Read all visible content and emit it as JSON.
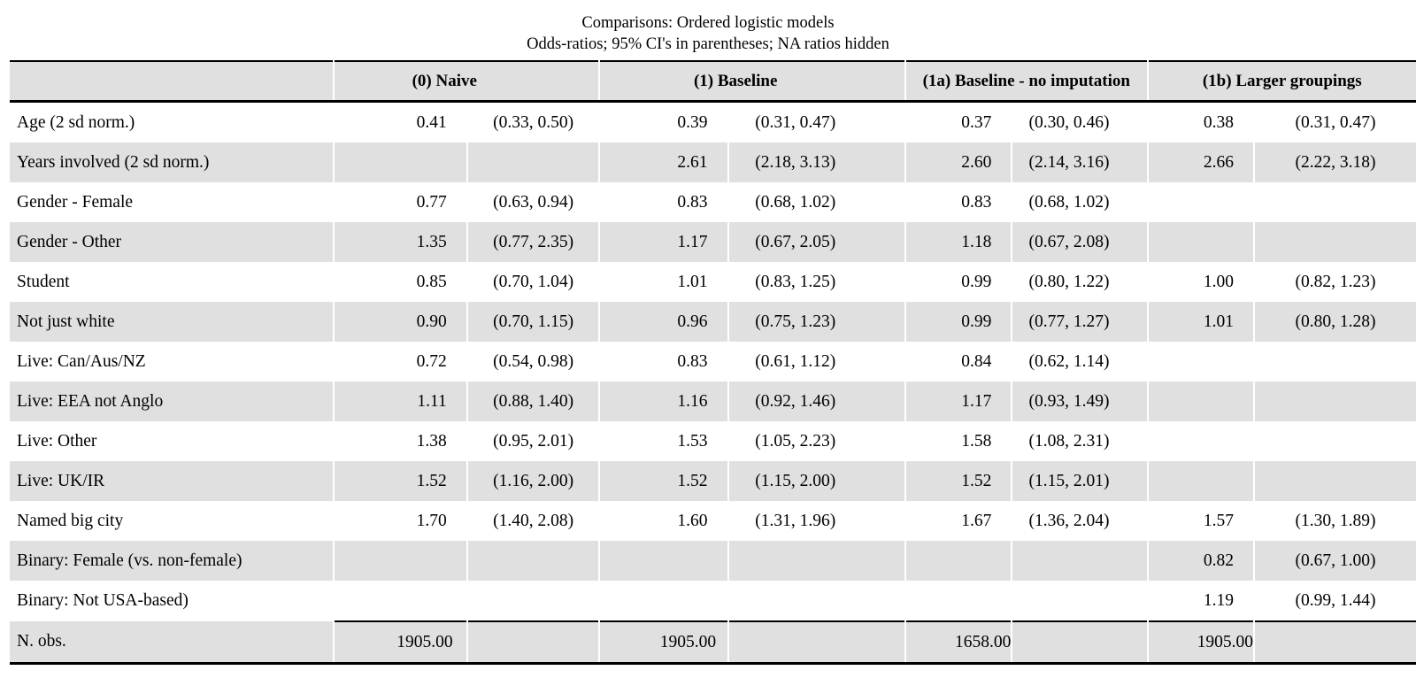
{
  "chart_data": {
    "type": "table",
    "title": "Comparisons: Ordered logistic models",
    "subtitle": "Odds-ratios; 95% CI's in parentheses; NA ratios hidden",
    "column_groups": [
      "(0) Naive",
      "(1) Baseline",
      "(1a) Baseline - no imputation",
      "(1b) Larger groupings"
    ],
    "rows": [
      {
        "label": "Age (2 sd norm.)",
        "cells": [
          {
            "or": "0.41",
            "ci": "(0.33, 0.50)"
          },
          {
            "or": "0.39",
            "ci": "(0.31, 0.47)"
          },
          {
            "or": "0.37",
            "ci": "(0.30, 0.46)"
          },
          {
            "or": "0.38",
            "ci": "(0.31, 0.47)"
          }
        ]
      },
      {
        "label": "Years involved (2 sd norm.)",
        "cells": [
          {
            "or": "",
            "ci": ""
          },
          {
            "or": "2.61",
            "ci": "(2.18, 3.13)"
          },
          {
            "or": "2.60",
            "ci": "(2.14, 3.16)"
          },
          {
            "or": "2.66",
            "ci": "(2.22, 3.18)"
          }
        ]
      },
      {
        "label": "Gender - Female",
        "cells": [
          {
            "or": "0.77",
            "ci": "(0.63, 0.94)"
          },
          {
            "or": "0.83",
            "ci": "(0.68, 1.02)"
          },
          {
            "or": "0.83",
            "ci": "(0.68, 1.02)"
          },
          {
            "or": "",
            "ci": ""
          }
        ]
      },
      {
        "label": "Gender - Other",
        "cells": [
          {
            "or": "1.35",
            "ci": "(0.77, 2.35)"
          },
          {
            "or": "1.17",
            "ci": "(0.67, 2.05)"
          },
          {
            "or": "1.18",
            "ci": "(0.67, 2.08)"
          },
          {
            "or": "",
            "ci": ""
          }
        ]
      },
      {
        "label": "Student",
        "cells": [
          {
            "or": "0.85",
            "ci": "(0.70, 1.04)"
          },
          {
            "or": "1.01",
            "ci": "(0.83, 1.25)"
          },
          {
            "or": "0.99",
            "ci": "(0.80, 1.22)"
          },
          {
            "or": "1.00",
            "ci": "(0.82, 1.23)"
          }
        ]
      },
      {
        "label": "Not just white",
        "cells": [
          {
            "or": "0.90",
            "ci": "(0.70, 1.15)"
          },
          {
            "or": "0.96",
            "ci": "(0.75, 1.23)"
          },
          {
            "or": "0.99",
            "ci": "(0.77, 1.27)"
          },
          {
            "or": "1.01",
            "ci": "(0.80, 1.28)"
          }
        ]
      },
      {
        "label": "Live: Can/Aus/NZ",
        "cells": [
          {
            "or": "0.72",
            "ci": "(0.54, 0.98)"
          },
          {
            "or": "0.83",
            "ci": "(0.61, 1.12)"
          },
          {
            "or": "0.84",
            "ci": "(0.62, 1.14)"
          },
          {
            "or": "",
            "ci": ""
          }
        ]
      },
      {
        "label": "Live: EEA not Anglo",
        "cells": [
          {
            "or": "1.11",
            "ci": "(0.88, 1.40)"
          },
          {
            "or": "1.16",
            "ci": "(0.92, 1.46)"
          },
          {
            "or": "1.17",
            "ci": "(0.93, 1.49)"
          },
          {
            "or": "",
            "ci": ""
          }
        ]
      },
      {
        "label": "Live: Other",
        "cells": [
          {
            "or": "1.38",
            "ci": "(0.95, 2.01)"
          },
          {
            "or": "1.53",
            "ci": "(1.05, 2.23)"
          },
          {
            "or": "1.58",
            "ci": "(1.08, 2.31)"
          },
          {
            "or": "",
            "ci": ""
          }
        ]
      },
      {
        "label": "Live: UK/IR",
        "cells": [
          {
            "or": "1.52",
            "ci": "(1.16, 2.00)"
          },
          {
            "or": "1.52",
            "ci": "(1.15, 2.00)"
          },
          {
            "or": "1.52",
            "ci": "(1.15, 2.01)"
          },
          {
            "or": "",
            "ci": ""
          }
        ]
      },
      {
        "label": "Named big city",
        "cells": [
          {
            "or": "1.70",
            "ci": "(1.40, 2.08)"
          },
          {
            "or": "1.60",
            "ci": "(1.31, 1.96)"
          },
          {
            "or": "1.67",
            "ci": "(1.36, 2.04)"
          },
          {
            "or": "1.57",
            "ci": "(1.30, 1.89)"
          }
        ]
      },
      {
        "label": "Binary: Female (vs. non-female)",
        "cells": [
          {
            "or": "",
            "ci": ""
          },
          {
            "or": "",
            "ci": ""
          },
          {
            "or": "",
            "ci": ""
          },
          {
            "or": "0.82",
            "ci": "(0.67, 1.00)"
          }
        ]
      },
      {
        "label": "Binary: Not USA-based)",
        "cells": [
          {
            "or": "",
            "ci": ""
          },
          {
            "or": "",
            "ci": ""
          },
          {
            "or": "",
            "ci": ""
          },
          {
            "or": "1.19",
            "ci": "(0.99, 1.44)"
          }
        ]
      }
    ],
    "footer": {
      "label": "N. obs.",
      "values": [
        "1905.00",
        "1905.00",
        "1658.00",
        "1905.00"
      ]
    }
  },
  "colors": {
    "stripe_gray": "#e0e0e0",
    "rule_black": "#000000",
    "text": "#000000"
  }
}
